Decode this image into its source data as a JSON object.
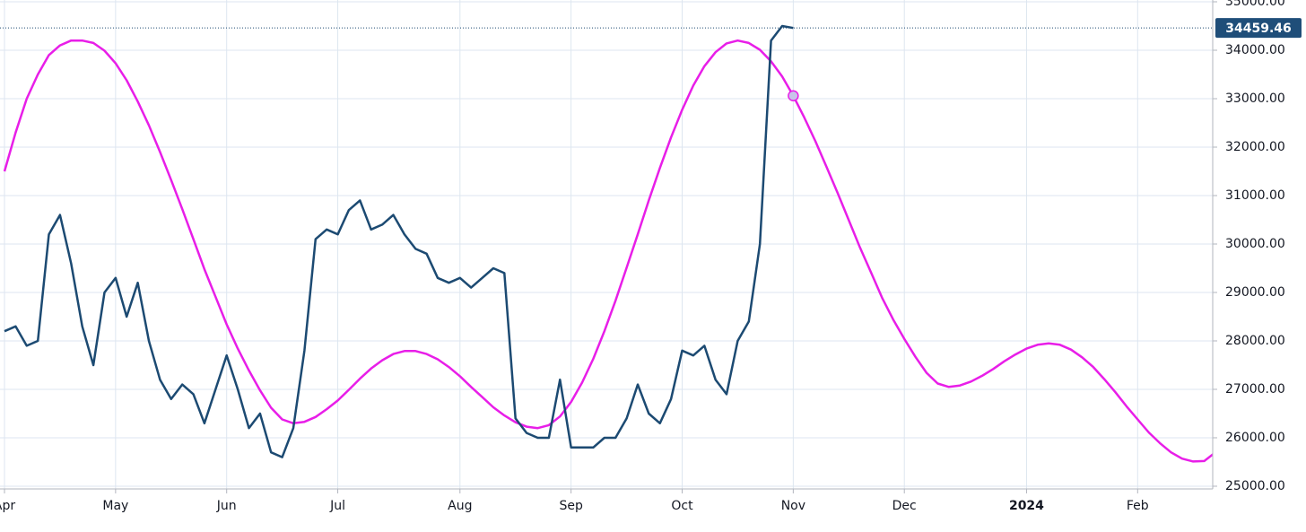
{
  "chart_data": {
    "type": "line",
    "categories": [
      "Apr",
      null,
      null,
      null,
      null,
      null,
      null,
      null,
      null,
      null,
      "May",
      null,
      null,
      null,
      null,
      null,
      null,
      null,
      null,
      null,
      "Jun",
      null,
      null,
      null,
      null,
      null,
      null,
      null,
      null,
      null,
      "Jul",
      null,
      null,
      null,
      null,
      null,
      null,
      null,
      null,
      null,
      null,
      "Aug",
      null,
      null,
      null,
      null,
      null,
      null,
      null,
      null,
      null,
      "Sep",
      null,
      null,
      null,
      null,
      null,
      null,
      null,
      null,
      null,
      "Oct",
      null,
      null,
      null,
      null,
      null,
      null,
      null,
      null,
      null,
      "Nov",
      null,
      null,
      null,
      null,
      null,
      null,
      null,
      null,
      null,
      "Dec",
      null,
      null,
      null,
      null,
      null,
      null,
      null,
      null,
      null,
      null,
      "2024",
      null,
      null,
      null,
      null,
      null,
      null,
      null,
      null,
      null,
      "Feb",
      null,
      null,
      null,
      null,
      null,
      null,
      null
    ],
    "series": [
      {
        "color": "#1c4a72",
        "values": [
          28200,
          28300,
          27900,
          28000,
          30200,
          30600,
          29600,
          28300,
          27500,
          29000,
          29300,
          28500,
          29200,
          28000,
          27200,
          26800,
          27100,
          26900,
          26300,
          27000,
          27700,
          27000,
          26200,
          26500,
          25700,
          25600,
          26200,
          27800,
          30100,
          30300,
          30200,
          30700,
          30900,
          30300,
          30400,
          30600,
          30200,
          29900,
          29800,
          29300,
          29200,
          29300,
          29100,
          29300,
          29500,
          29400,
          26400,
          26100,
          26000,
          26000,
          27200,
          25800,
          25800,
          25800,
          26000,
          26000,
          26400,
          27100,
          26500,
          26300,
          26800,
          27800,
          27700,
          27900,
          27200,
          26900,
          28000,
          28400,
          30000,
          34200,
          34500,
          34459.46,
          null,
          null,
          null,
          null,
          null,
          null,
          null,
          null,
          null,
          null,
          null,
          null,
          null,
          null,
          null,
          null,
          null,
          null,
          null,
          null,
          null,
          null,
          null,
          null,
          null,
          null,
          null,
          null,
          null,
          null,
          null,
          null,
          null,
          null,
          null,
          null,
          null,
          null
        ]
      },
      {
        "color": "#e81ee8",
        "values": [
          31500,
          32300,
          33000,
          33500,
          33900,
          34100,
          34200,
          34200,
          34150,
          33990,
          33730,
          33380,
          32940,
          32450,
          31900,
          31320,
          30720,
          30100,
          29480,
          28910,
          28340,
          27840,
          27390,
          26980,
          26620,
          26380,
          26300,
          26330,
          26430,
          26590,
          26770,
          26990,
          27220,
          27430,
          27600,
          27730,
          27790,
          27790,
          27730,
          27620,
          27460,
          27270,
          27050,
          26840,
          26630,
          26460,
          26320,
          26230,
          26200,
          26260,
          26440,
          26740,
          27140,
          27630,
          28200,
          28830,
          29510,
          30200,
          30900,
          31570,
          32200,
          32770,
          33270,
          33670,
          33960,
          34140,
          34200,
          34150,
          34010,
          33770,
          33460,
          33060,
          32610,
          32120,
          31590,
          31050,
          30490,
          29930,
          29410,
          28890,
          28440,
          28040,
          27670,
          27340,
          27120,
          27050,
          27080,
          27160,
          27280,
          27420,
          27580,
          27720,
          27840,
          27920,
          27950,
          27920,
          27820,
          27660,
          27460,
          27210,
          26940,
          26650,
          26380,
          26110,
          25890,
          25700,
          25570,
          25510,
          25520,
          25700
        ]
      }
    ],
    "ylim": [
      24944,
      35037
    ],
    "yticks": [
      {
        "value": 25000,
        "label": "25000.00"
      },
      {
        "value": 26000,
        "label": "26000.00"
      },
      {
        "value": 27000,
        "label": "27000.00"
      },
      {
        "value": 28000,
        "label": "28000.00"
      },
      {
        "value": 29000,
        "label": "29000.00"
      },
      {
        "value": 30000,
        "label": "30000.00"
      },
      {
        "value": 31000,
        "label": "31000.00"
      },
      {
        "value": 32000,
        "label": "32000.00"
      },
      {
        "value": 33000,
        "label": "33000.00"
      },
      {
        "value": 34000,
        "label": "34000.00"
      },
      {
        "value": 35000,
        "label": "35000.00"
      }
    ],
    "grid": true
  }
}
